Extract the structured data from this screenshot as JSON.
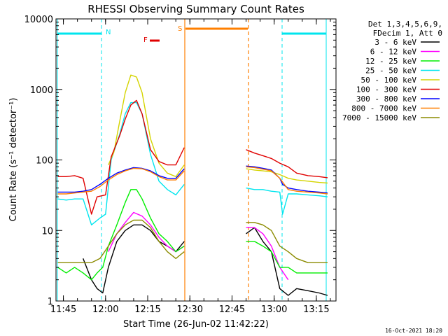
{
  "chart_data": {
    "type": "line",
    "title": "RHESSI Observing Summary Count Rates",
    "xlabel": "Start Time (26-Jun-02 11:42:22)",
    "ylabel": "Count Rate (s⁻¹ detector⁻¹)",
    "y_scale": "log",
    "ylim": [
      1,
      10000
    ],
    "xlim": [
      "11:42:22",
      "13:22:00"
    ],
    "x_ticks": [
      "11:45",
      "12:00",
      "12:15",
      "12:30",
      "12:45",
      "13:00",
      "13:15"
    ],
    "y_ticks": [
      "1",
      "10",
      "100",
      "1000",
      "10000"
    ],
    "legend_header": [
      "Det 1,3,4,5,6,9,",
      "FDecim 1, Att 0"
    ],
    "legend_position": "right",
    "footer_date": "16-Oct-2021 18:20",
    "flags": [
      {
        "label": "N",
        "color": "#00e5ee"
      },
      {
        "label": "F",
        "color": "#e00000"
      },
      {
        "label": "S",
        "color": "#ff7f00"
      }
    ],
    "series": [
      {
        "name": "3 - 6 keV",
        "color": "#000000",
        "x": [
          "11:52",
          "11:55",
          "11:57",
          "11:59",
          "12:01",
          "12:04",
          "12:07",
          "12:10",
          "12:13",
          "12:16",
          "12:19",
          "12:22",
          "12:25",
          "12:28",
          "12:50",
          "12:53",
          "12:56",
          "12:59",
          "13:02",
          "13:05",
          "13:08",
          "13:12",
          "13:16",
          "13:19"
        ],
        "y": [
          4,
          2,
          1.5,
          1.3,
          3,
          7,
          10,
          12,
          12,
          10,
          7,
          6,
          5,
          7,
          9,
          11,
          7,
          5,
          1.5,
          1.2,
          1.5,
          1.4,
          1.3,
          1.2
        ]
      },
      {
        "name": "6 - 12 keV",
        "color": "#ff00ff",
        "x": [
          "12:01",
          "12:04",
          "12:07",
          "12:10",
          "12:13",
          "12:16",
          "12:19",
          "12:22",
          "12:25",
          "12:28",
          "12:50",
          "12:53",
          "12:56",
          "12:59",
          "13:02",
          "13:05"
        ],
        "y": [
          5,
          9,
          13,
          18,
          16,
          12,
          8,
          6,
          5,
          6,
          11,
          11,
          9,
          6,
          3,
          2
        ]
      },
      {
        "name": "12 - 25 keV",
        "color": "#00ee00",
        "x": [
          "11:43",
          "11:46",
          "11:49",
          "11:52",
          "11:55",
          "11:57",
          "11:59",
          "12:01",
          "12:04",
          "12:07",
          "12:09",
          "12:11",
          "12:13",
          "12:16",
          "12:19",
          "12:22",
          "12:25",
          "12:28",
          "12:50",
          "12:53",
          "12:56",
          "12:59",
          "13:02",
          "13:05",
          "13:08",
          "13:12",
          "13:16",
          "13:19"
        ],
        "y": [
          3,
          2.5,
          3,
          2.5,
          2,
          2.5,
          3,
          6,
          12,
          25,
          38,
          38,
          28,
          15,
          9,
          7,
          5,
          6,
          7,
          7,
          6,
          5,
          3,
          3,
          2.5,
          2.5,
          2.5,
          2.5
        ]
      },
      {
        "name": "25 - 50 keV",
        "color": "#00e5ee",
        "x": [
          "11:43",
          "11:46",
          "11:49",
          "11:52",
          "11:55",
          "11:58",
          "12:00",
          "12:02",
          "12:05",
          "12:07",
          "12:09",
          "12:11",
          "12:13",
          "12:16",
          "12:19",
          "12:22",
          "12:25",
          "12:28",
          "12:50",
          "12:53",
          "12:56",
          "12:59",
          "13:02",
          "13:03",
          "13:05",
          "13:08",
          "13:12",
          "13:16",
          "13:19"
        ],
        "y": [
          28,
          27,
          28,
          28,
          12,
          15,
          17,
          100,
          230,
          450,
          650,
          650,
          450,
          120,
          50,
          38,
          32,
          45,
          40,
          38,
          38,
          36,
          35,
          17,
          33,
          33,
          32,
          31,
          30
        ]
      },
      {
        "name": "50 - 100 keV",
        "color": "#d4d400",
        "x": [
          "12:01",
          "12:03",
          "12:05",
          "12:07",
          "12:09",
          "12:11",
          "12:13",
          "12:16",
          "12:19",
          "12:22",
          "12:25",
          "12:28",
          "12:50",
          "12:53",
          "12:56",
          "12:59",
          "13:02",
          "13:05",
          "13:08",
          "13:12",
          "13:16",
          "13:19"
        ],
        "y": [
          85,
          130,
          350,
          900,
          1600,
          1500,
          900,
          200,
          90,
          65,
          58,
          85,
          75,
          72,
          70,
          68,
          62,
          55,
          52,
          50,
          48,
          47
        ]
      },
      {
        "name": "100 - 300 keV",
        "color": "#e00000",
        "x": [
          "11:43",
          "11:46",
          "11:49",
          "11:52",
          "11:55",
          "11:57",
          "12:00",
          "12:02",
          "12:05",
          "12:07",
          "12:09",
          "12:11",
          "12:13",
          "12:16",
          "12:19",
          "12:22",
          "12:25",
          "12:28",
          "12:50",
          "12:53",
          "12:56",
          "12:59",
          "13:02",
          "13:05",
          "13:08",
          "13:12",
          "13:16",
          "13:19"
        ],
        "y": [
          58,
          58,
          60,
          55,
          17,
          30,
          32,
          110,
          220,
          380,
          600,
          700,
          450,
          140,
          95,
          85,
          85,
          150,
          140,
          125,
          115,
          105,
          90,
          80,
          65,
          60,
          58,
          56
        ]
      },
      {
        "name": "300 - 800 keV",
        "color": "#0000ff",
        "x": [
          "11:43",
          "11:46",
          "11:49",
          "11:52",
          "11:55",
          "11:58",
          "12:01",
          "12:04",
          "12:07",
          "12:10",
          "12:13",
          "12:16",
          "12:19",
          "12:22",
          "12:25",
          "12:28",
          "12:50",
          "12:53",
          "12:56",
          "12:59",
          "13:02",
          "13:03",
          "13:05",
          "13:08",
          "13:12",
          "13:16",
          "13:19"
        ],
        "y": [
          35,
          35,
          35,
          36,
          38,
          45,
          55,
          65,
          72,
          78,
          76,
          70,
          60,
          55,
          55,
          75,
          82,
          80,
          76,
          72,
          55,
          45,
          40,
          38,
          36,
          35,
          34
        ]
      },
      {
        "name": "800 - 7000 keV",
        "color": "#ff7f00",
        "x": [
          "11:43",
          "11:46",
          "11:49",
          "11:52",
          "11:55",
          "11:58",
          "12:01",
          "12:04",
          "12:07",
          "12:10",
          "12:13",
          "12:16",
          "12:19",
          "12:22",
          "12:25",
          "12:28",
          "12:50",
          "12:53",
          "12:56",
          "12:59",
          "13:02",
          "13:05",
          "13:08",
          "13:12",
          "13:16",
          "13:19"
        ],
        "y": [
          33,
          33,
          34,
          35,
          36,
          42,
          52,
          62,
          70,
          76,
          75,
          68,
          58,
          52,
          52,
          70,
          80,
          78,
          74,
          70,
          55,
          38,
          36,
          35,
          34,
          33
        ]
      },
      {
        "name": "7000 - 15000 keV",
        "color": "#8b8b00",
        "x": [
          "11:43",
          "11:46",
          "11:49",
          "11:52",
          "11:55",
          "11:58",
          "12:01",
          "12:04",
          "12:07",
          "12:10",
          "12:13",
          "12:16",
          "12:19",
          "12:22",
          "12:25",
          "12:28",
          "12:50",
          "12:53",
          "12:56",
          "12:59",
          "13:02",
          "13:05",
          "13:08",
          "13:12",
          "13:16",
          "13:19"
        ],
        "y": [
          3.5,
          3.5,
          3.5,
          3.5,
          3.5,
          4,
          6,
          9,
          12,
          14,
          14,
          11,
          7,
          5,
          4,
          5,
          13,
          13,
          12,
          10,
          6,
          5,
          4,
          3.5,
          3.5,
          3.5
        ]
      }
    ]
  }
}
